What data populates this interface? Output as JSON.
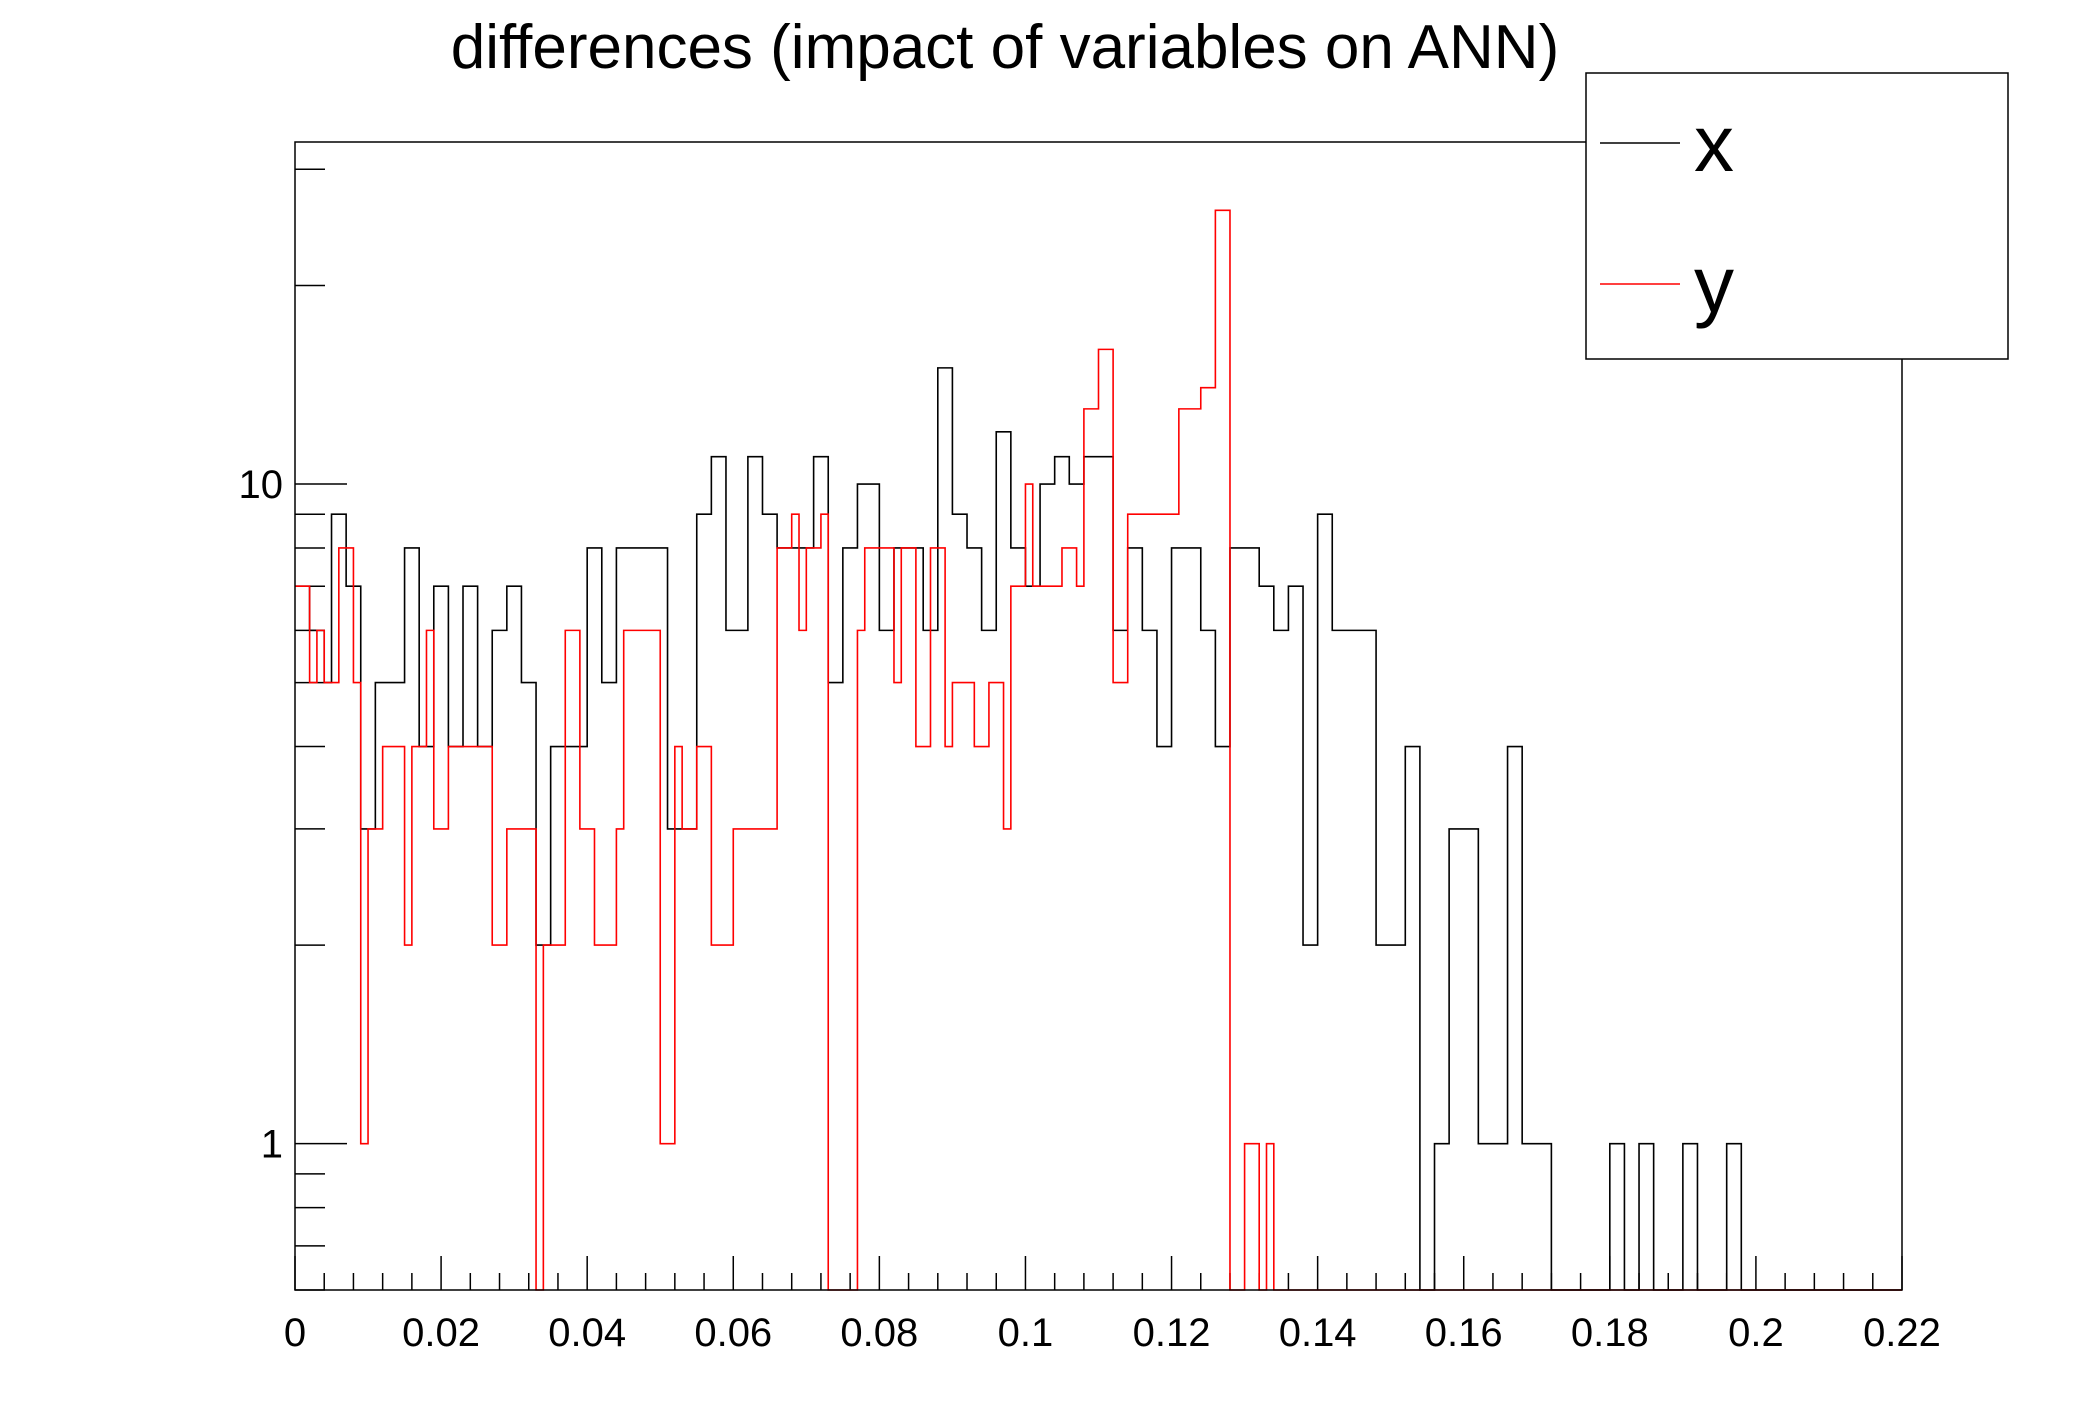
{
  "chart_data": {
    "type": "histogram",
    "title": "differences (impact of variables on ANN)",
    "xlabel": "",
    "ylabel": "",
    "xlim": [
      0,
      0.22
    ],
    "ylim": [
      0.6,
      33
    ],
    "y_scale": "log",
    "x_ticks": [
      {
        "value": 0,
        "label": "0"
      },
      {
        "value": 0.02,
        "label": "0.02"
      },
      {
        "value": 0.04,
        "label": "0.04"
      },
      {
        "value": 0.06,
        "label": "0.06"
      },
      {
        "value": 0.08,
        "label": "0.08"
      },
      {
        "value": 0.1,
        "label": "0.1"
      },
      {
        "value": 0.12,
        "label": "0.12"
      },
      {
        "value": 0.14,
        "label": "0.14"
      },
      {
        "value": 0.16,
        "label": "0.16"
      },
      {
        "value": 0.18,
        "label": "0.18"
      },
      {
        "value": 0.2,
        "label": "0.2"
      },
      {
        "value": 0.22,
        "label": "0.22"
      }
    ],
    "y_ticks": [
      {
        "value": 1,
        "label": "1"
      },
      {
        "value": 10,
        "label": "10"
      }
    ],
    "legend": {
      "position": "top-right"
    },
    "series": [
      {
        "name": "x",
        "color": "#000000",
        "bins": [
          [
            0.0,
            7
          ],
          [
            0.002,
            6
          ],
          [
            0.004,
            5
          ],
          [
            0.005,
            9
          ],
          [
            0.007,
            7
          ],
          [
            0.009,
            3
          ],
          [
            0.011,
            5
          ],
          [
            0.013,
            5
          ],
          [
            0.015,
            8
          ],
          [
            0.017,
            4
          ],
          [
            0.019,
            7
          ],
          [
            0.021,
            4
          ],
          [
            0.023,
            7
          ],
          [
            0.025,
            4
          ],
          [
            0.027,
            6
          ],
          [
            0.029,
            7
          ],
          [
            0.031,
            5
          ],
          [
            0.033,
            2
          ],
          [
            0.035,
            4
          ],
          [
            0.037,
            4
          ],
          [
            0.04,
            8
          ],
          [
            0.042,
            5
          ],
          [
            0.044,
            8
          ],
          [
            0.046,
            8
          ],
          [
            0.05,
            8
          ],
          [
            0.051,
            3
          ],
          [
            0.055,
            9
          ],
          [
            0.057,
            11
          ],
          [
            0.059,
            6
          ],
          [
            0.062,
            11
          ],
          [
            0.064,
            9
          ],
          [
            0.066,
            8
          ],
          [
            0.068,
            8
          ],
          [
            0.071,
            11
          ],
          [
            0.073,
            5
          ],
          [
            0.075,
            8
          ],
          [
            0.077,
            10
          ],
          [
            0.08,
            6
          ],
          [
            0.082,
            8
          ],
          [
            0.084,
            8
          ],
          [
            0.086,
            6
          ],
          [
            0.088,
            15
          ],
          [
            0.09,
            9
          ],
          [
            0.092,
            8
          ],
          [
            0.094,
            6
          ],
          [
            0.096,
            12
          ],
          [
            0.098,
            8
          ],
          [
            0.1,
            7
          ],
          [
            0.102,
            10
          ],
          [
            0.104,
            11
          ],
          [
            0.106,
            10
          ],
          [
            0.108,
            11
          ],
          [
            0.11,
            11
          ],
          [
            0.112,
            6
          ],
          [
            0.114,
            8
          ],
          [
            0.116,
            6
          ],
          [
            0.118,
            4
          ],
          [
            0.12,
            8
          ],
          [
            0.122,
            8
          ],
          [
            0.124,
            6
          ],
          [
            0.126,
            4
          ],
          [
            0.128,
            8
          ],
          [
            0.132,
            7
          ],
          [
            0.134,
            6
          ],
          [
            0.136,
            7
          ],
          [
            0.138,
            2
          ],
          [
            0.14,
            9
          ],
          [
            0.142,
            6
          ],
          [
            0.144,
            6
          ],
          [
            0.148,
            2
          ],
          [
            0.152,
            4
          ],
          [
            0.154,
            0
          ],
          [
            0.156,
            1
          ],
          [
            0.158,
            3
          ],
          [
            0.162,
            1
          ],
          [
            0.166,
            4
          ],
          [
            0.168,
            1
          ],
          [
            0.172,
            0
          ],
          [
            0.18,
            1
          ],
          [
            0.182,
            0
          ],
          [
            0.184,
            1
          ],
          [
            0.186,
            0
          ],
          [
            0.19,
            1
          ],
          [
            0.192,
            0
          ],
          [
            0.196,
            1
          ],
          [
            0.198,
            0
          ],
          [
            0.22,
            0
          ]
        ]
      },
      {
        "name": "y",
        "color": "#ff0000",
        "bins": [
          [
            0.0,
            7
          ],
          [
            0.002,
            5
          ],
          [
            0.003,
            6
          ],
          [
            0.004,
            5
          ],
          [
            0.006,
            8
          ],
          [
            0.008,
            5
          ],
          [
            0.009,
            1
          ],
          [
            0.01,
            3
          ],
          [
            0.012,
            4
          ],
          [
            0.015,
            2
          ],
          [
            0.016,
            4
          ],
          [
            0.018,
            6
          ],
          [
            0.019,
            3
          ],
          [
            0.021,
            4
          ],
          [
            0.025,
            4
          ],
          [
            0.027,
            2
          ],
          [
            0.029,
            3
          ],
          [
            0.033,
            0
          ],
          [
            0.034,
            2
          ],
          [
            0.037,
            6
          ],
          [
            0.039,
            3
          ],
          [
            0.041,
            2
          ],
          [
            0.044,
            3
          ],
          [
            0.045,
            6
          ],
          [
            0.05,
            1
          ],
          [
            0.052,
            4
          ],
          [
            0.053,
            3
          ],
          [
            0.055,
            4
          ],
          [
            0.057,
            2
          ],
          [
            0.06,
            3
          ],
          [
            0.066,
            8
          ],
          [
            0.068,
            9
          ],
          [
            0.069,
            6
          ],
          [
            0.07,
            8
          ],
          [
            0.072,
            9
          ],
          [
            0.073,
            0
          ],
          [
            0.077,
            6
          ],
          [
            0.078,
            8
          ],
          [
            0.082,
            5
          ],
          [
            0.083,
            8
          ],
          [
            0.085,
            4
          ],
          [
            0.087,
            8
          ],
          [
            0.089,
            4
          ],
          [
            0.09,
            5
          ],
          [
            0.093,
            4
          ],
          [
            0.095,
            5
          ],
          [
            0.097,
            3
          ],
          [
            0.098,
            7
          ],
          [
            0.1,
            10
          ],
          [
            0.101,
            7
          ],
          [
            0.103,
            7
          ],
          [
            0.105,
            8
          ],
          [
            0.107,
            7
          ],
          [
            0.108,
            13
          ],
          [
            0.11,
            16
          ],
          [
            0.112,
            5
          ],
          [
            0.114,
            9
          ],
          [
            0.117,
            9
          ],
          [
            0.121,
            13
          ],
          [
            0.124,
            14
          ],
          [
            0.126,
            26
          ],
          [
            0.128,
            0
          ],
          [
            0.13,
            1
          ],
          [
            0.132,
            0
          ],
          [
            0.133,
            1
          ],
          [
            0.134,
            0
          ],
          [
            0.22,
            0
          ]
        ]
      }
    ]
  }
}
